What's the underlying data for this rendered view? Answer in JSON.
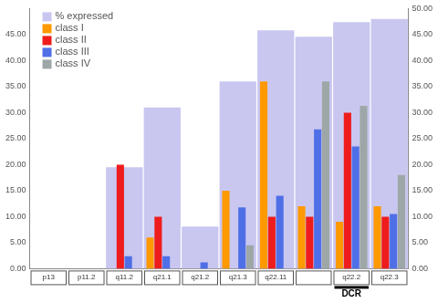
{
  "chart_data": {
    "type": "bar",
    "categories": [
      "p13",
      "p11.2",
      "q11.2",
      "q21.1",
      "q21.2",
      "q21.3",
      "q22.11",
      null,
      "q22.2",
      "q22.3"
    ],
    "series": [
      {
        "name": "% expressed",
        "color": "#c9c7f0",
        "axis": "y2",
        "values": [
          null,
          null,
          19.5,
          31,
          8.1,
          36,
          45.8,
          44.6,
          47.4,
          48
        ]
      },
      {
        "name": "class I",
        "color": "#ff9900",
        "values": [
          null,
          null,
          null,
          6,
          null,
          15,
          36,
          12,
          9,
          12
        ]
      },
      {
        "name": "class II",
        "color": "#ee1c1c",
        "values": [
          null,
          null,
          20,
          10,
          null,
          null,
          10,
          10,
          30,
          10
        ]
      },
      {
        "name": "class III",
        "color": "#4f6fe6",
        "values": [
          null,
          null,
          2.4,
          2.4,
          1.2,
          11.8,
          14,
          26.8,
          23.5,
          10.5
        ]
      },
      {
        "name": "class IV",
        "color": "#9ea7a7",
        "values": [
          null,
          null,
          null,
          null,
          null,
          4.5,
          null,
          36,
          31.3,
          18
        ]
      }
    ],
    "ylim": [
      0,
      50
    ],
    "yticks": [
      {
        "value": 0,
        "label": "0.00"
      },
      {
        "value": 5,
        "label": "5.00"
      },
      {
        "value": 10,
        "label": "10.00"
      },
      {
        "value": 15,
        "label": "15.00"
      },
      {
        "value": 20,
        "label": "20.00"
      },
      {
        "value": 25,
        "label": "25.00"
      },
      {
        "value": 30,
        "label": "30.00"
      },
      {
        "value": 35,
        "label": "35.00"
      },
      {
        "value": 40,
        "label": "40.00"
      },
      {
        "value": 45,
        "label": "45.00"
      }
    ],
    "y2lim": [
      0,
      50
    ],
    "y2ticks": [
      {
        "value": 0,
        "label": "0.00"
      },
      {
        "value": 5,
        "label": "5.00"
      },
      {
        "value": 10,
        "label": "10.00"
      },
      {
        "value": 15,
        "label": "15.00"
      },
      {
        "value": 20,
        "label": "20.00"
      },
      {
        "value": 25,
        "label": "25.00"
      },
      {
        "value": 30,
        "label": "30.00"
      },
      {
        "value": 35,
        "label": "35.00"
      },
      {
        "value": 40,
        "label": "40.00"
      },
      {
        "value": 45,
        "label": "45.00"
      },
      {
        "value": 50,
        "label": "50.00"
      }
    ],
    "grid": false,
    "legend": "upper left",
    "annotations": [
      {
        "text": "DCR",
        "category": "q22.2"
      }
    ]
  }
}
